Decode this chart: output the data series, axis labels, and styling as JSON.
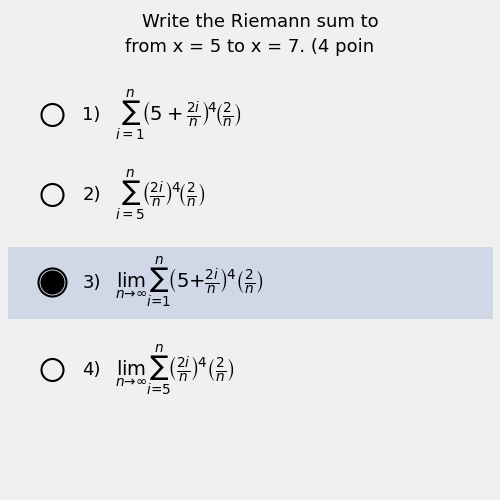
{
  "bg_color": "#f0f0f0",
  "title_line1": "Write the Riemann sum to",
  "title_line2": "from x = 5 to x = 7. (4 poin",
  "highlight_color": "#d0d8e8",
  "text_color": "#000000",
  "options": [
    {
      "number": "1)",
      "formula": "$\\sum_{i=1}^{n}\\left(5+\\frac{2i}{n}\\right)^{4}\\left(\\frac{2}{n}\\right)$",
      "selected": false,
      "highlight": false
    },
    {
      "number": "2)",
      "formula": "$\\sum_{i=5}^{n}\\left(\\frac{2i}{n}\\right)^{4}\\left(\\frac{2}{n}\\right)$",
      "selected": false,
      "highlight": false
    },
    {
      "number": "3)",
      "formula": "$\\lim_{n\\to\\infty}\\sum_{i=1}^{n}\\left(5+\\frac{2i}{n}\\right)^{4}\\left(\\frac{2}{n}\\right)$",
      "selected": true,
      "highlight": true
    },
    {
      "number": "4)",
      "formula": "$\\lim_{n\\to\\infty}\\sum_{i=5}^{n}\\left(\\frac{2i}{n}\\right)^{4}\\left(\\frac{2}{n}\\right)$",
      "selected": false,
      "highlight": false
    }
  ]
}
